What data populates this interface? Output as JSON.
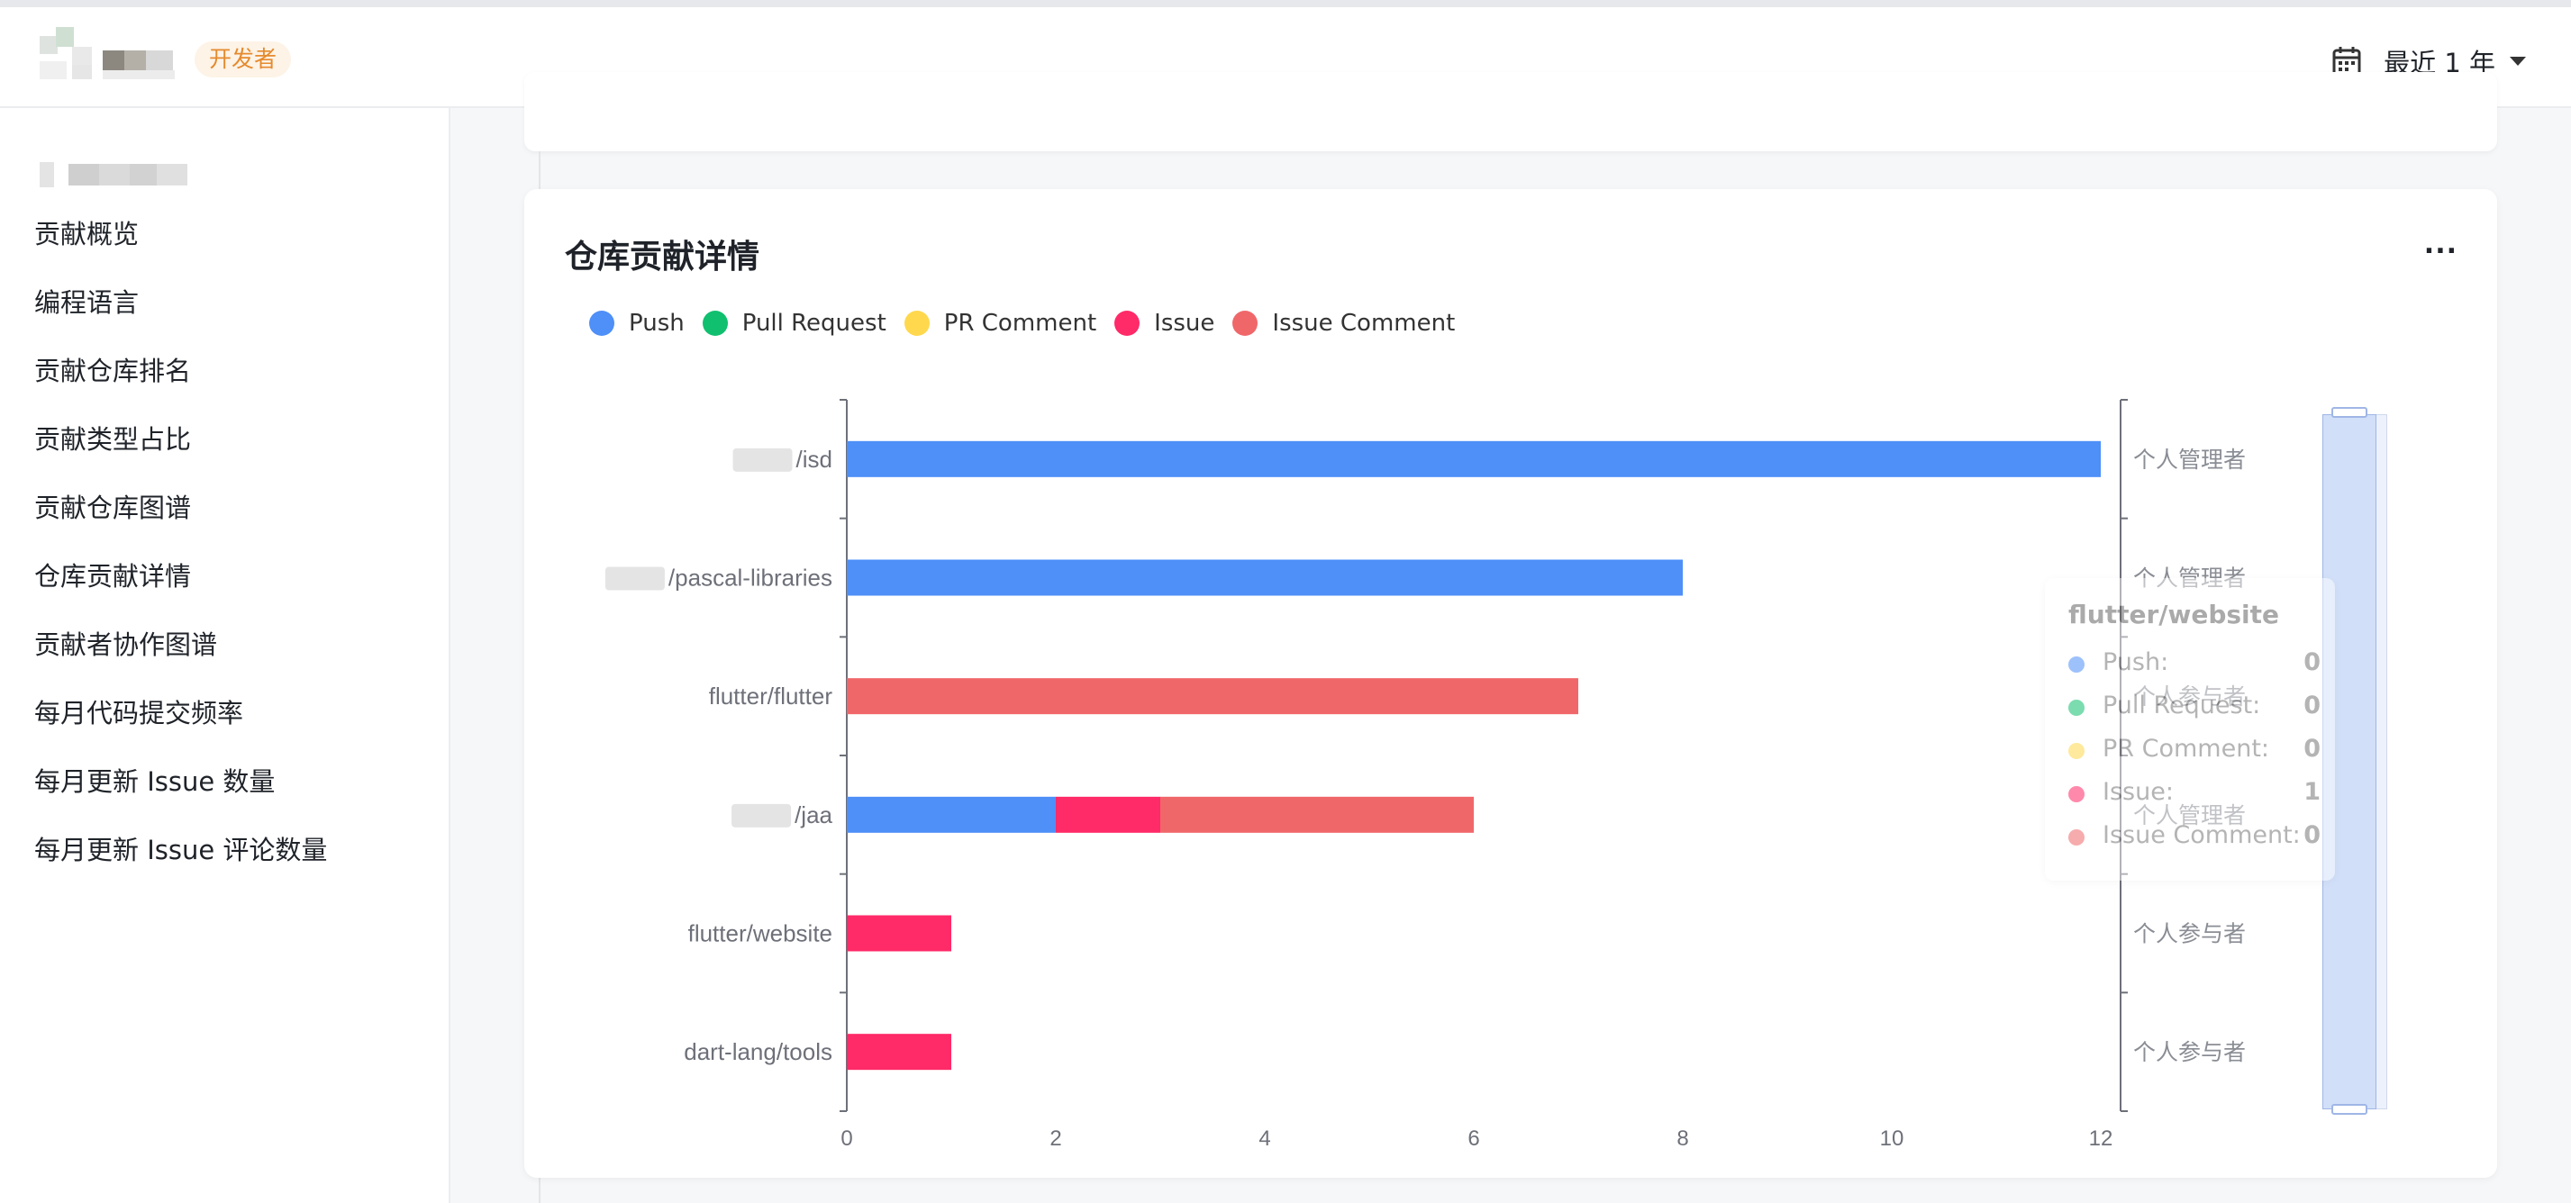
{
  "header": {
    "badge": "开发者",
    "date_range": "最近 1 年"
  },
  "sidebar": {
    "items": [
      {
        "label": "贡献概览"
      },
      {
        "label": "编程语言"
      },
      {
        "label": "贡献仓库排名"
      },
      {
        "label": "贡献类型占比"
      },
      {
        "label": "贡献仓库图谱"
      },
      {
        "label": "仓库贡献详情"
      },
      {
        "label": "贡献者协作图谱"
      },
      {
        "label": "每月代码提交频率"
      },
      {
        "label": "每月更新 Issue 数量"
      },
      {
        "label": "每月更新 Issue 评论数量"
      }
    ]
  },
  "card": {
    "title": "仓库贡献详情",
    "more": "..."
  },
  "colors": {
    "push": "#4e8ff8",
    "pull_request": "#10c06f",
    "pr_comment": "#ffd84d",
    "issue": "#ff2a68",
    "issue_comment": "#f0676a"
  },
  "chart_data": {
    "type": "bar",
    "orientation": "horizontal",
    "stacked": true,
    "legend_position": "top-left",
    "grid": false,
    "categories": [
      "/isd",
      "/pascal-libraries",
      "flutter/flutter",
      "/jaa",
      "flutter/website",
      "dart-lang/tools"
    ],
    "roles": [
      "个人管理者",
      "个人管理者",
      "个人参与者",
      "个人管理者",
      "个人参与者",
      "个人参与者"
    ],
    "series": [
      {
        "name": "Push",
        "values": [
          12,
          8,
          0,
          2,
          0,
          0
        ]
      },
      {
        "name": "Pull Request",
        "values": [
          0,
          0,
          0,
          0,
          0,
          0
        ]
      },
      {
        "name": "PR Comment",
        "values": [
          0,
          0,
          0,
          0,
          0,
          0
        ]
      },
      {
        "name": "Issue",
        "values": [
          0,
          0,
          0,
          1,
          1,
          1
        ]
      },
      {
        "name": "Issue Comment",
        "values": [
          0,
          0,
          7,
          3,
          0,
          0
        ]
      }
    ],
    "xlim": [
      0,
      12
    ],
    "xticks": [
      0,
      2,
      4,
      6,
      8,
      10,
      12
    ]
  },
  "tooltip": {
    "title": "flutter/website",
    "rows": [
      {
        "name": "Push:",
        "value": "0"
      },
      {
        "name": "Pull Request:",
        "value": "0"
      },
      {
        "name": "PR Comment:",
        "value": "0"
      },
      {
        "name": "Issue:",
        "value": "1"
      },
      {
        "name": "Issue Comment:",
        "value": "0"
      }
    ]
  }
}
